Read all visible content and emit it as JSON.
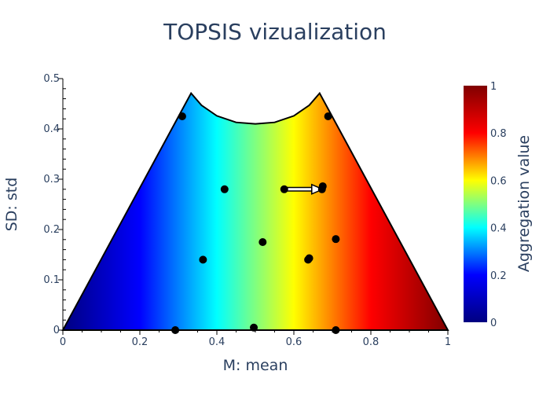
{
  "chart_data": {
    "type": "scatter",
    "title": "TOPSIS vizualization",
    "xlabel": "M: mean",
    "ylabel": "SD: std",
    "xlim": [
      0,
      1
    ],
    "ylim": [
      0,
      0.5
    ],
    "x_ticks": [
      "0",
      "0.2",
      "0.4",
      "0.6",
      "0.8",
      "1"
    ],
    "y_ticks": [
      "0",
      "0.1",
      "0.2",
      "0.3",
      "0.4",
      "0.5"
    ],
    "grid": false,
    "background": {
      "type": "heatmap",
      "quantity": "Aggregation value",
      "direction": "increases with M: mean",
      "colorscale": "Jet",
      "region_boundary_points": [
        [
          0.0,
          0.0
        ],
        [
          0.333,
          0.471
        ],
        [
          0.36,
          0.447
        ],
        [
          0.4,
          0.426
        ],
        [
          0.45,
          0.413
        ],
        [
          0.5,
          0.41
        ],
        [
          0.55,
          0.413
        ],
        [
          0.6,
          0.426
        ],
        [
          0.64,
          0.447
        ],
        [
          0.667,
          0.471
        ],
        [
          1.0,
          0.0
        ]
      ]
    },
    "colorbar": {
      "title": "Aggregation value",
      "range": [
        0,
        1
      ],
      "ticks": [
        "0",
        "0.2",
        "0.4",
        "0.6",
        "0.8",
        "1"
      ],
      "colors": [
        "#000080",
        "#0000ff",
        "#00ffff",
        "#ffff00",
        "#ff0000",
        "#800000"
      ]
    },
    "points": [
      {
        "x": 0.31,
        "y": 0.425
      },
      {
        "x": 0.689,
        "y": 0.425
      },
      {
        "x": 0.42,
        "y": 0.28
      },
      {
        "x": 0.575,
        "y": 0.28
      },
      {
        "x": 0.675,
        "y": 0.286
      },
      {
        "x": 0.673,
        "y": 0.28
      },
      {
        "x": 0.519,
        "y": 0.175
      },
      {
        "x": 0.709,
        "y": 0.181
      },
      {
        "x": 0.364,
        "y": 0.14
      },
      {
        "x": 0.637,
        "y": 0.14
      },
      {
        "x": 0.64,
        "y": 0.143
      },
      {
        "x": 0.292,
        "y": 0.0
      },
      {
        "x": 0.496,
        "y": 0.005
      },
      {
        "x": 0.709,
        "y": 0.0
      }
    ],
    "arrow": {
      "from": [
        0.575,
        0.28
      ],
      "to": [
        0.673,
        0.28
      ]
    }
  }
}
